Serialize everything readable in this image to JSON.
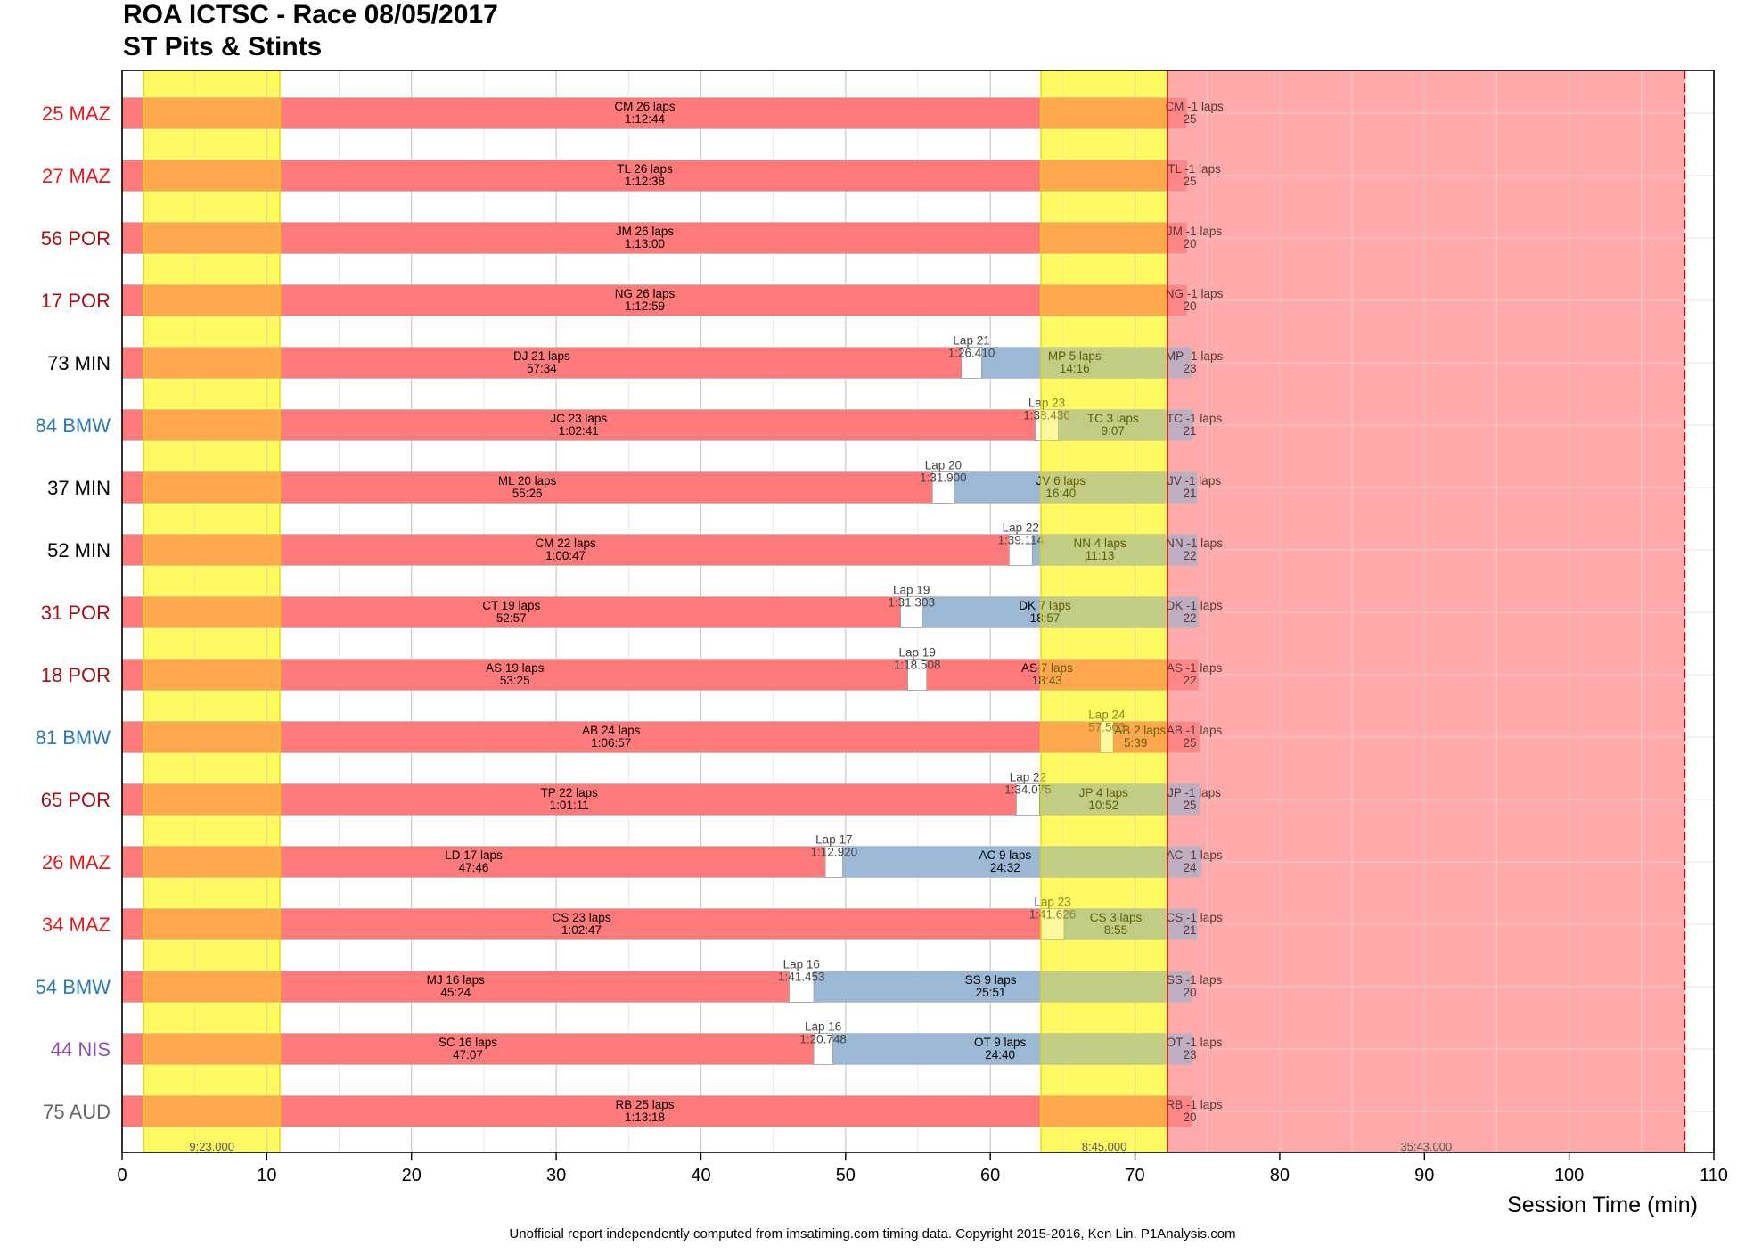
{
  "header": {
    "title": "ROA ICTSC - Race 08/05/2017",
    "subtitle": "ST Pits & Stints"
  },
  "footer": {
    "text": "Unofficial report independently computed from imsatiming.com timing data. Copyright 2015-2016, Ken Lin. P1Analysis.com"
  },
  "colors": {
    "stint_red": "#ff7b7b",
    "stint_blue": "#9bb9d6",
    "caution_yellow": "#ffff9e",
    "red_flag": "#ffb3b3",
    "pit_box": "#ffffff",
    "MAZ": "#e41a1c",
    "POR": "#a50f15",
    "MIN": "#000000",
    "BMW": "#2a7ab8",
    "NIS": "#8e4fb5",
    "AUD": "#666666"
  },
  "chart_data": {
    "type": "gantt",
    "xlabel": "Session Time (min)",
    "xlim": [
      0,
      110
    ],
    "xticks": [
      0,
      10,
      20,
      30,
      40,
      50,
      60,
      70,
      80,
      90,
      100,
      110
    ],
    "grid": true,
    "cautions": [
      {
        "start": 1.5,
        "end": 10.9,
        "label": "9:23.000",
        "kind": "yellow"
      },
      {
        "start": 63.5,
        "end": 72.25,
        "label": "8:45.000",
        "kind": "yellow"
      },
      {
        "start": 72.25,
        "end": 108.0,
        "label": "35:43.000",
        "kind": "red"
      }
    ],
    "rows": [
      {
        "label": "25 MAZ",
        "make": "MAZ",
        "stints": [
          {
            "start": 0,
            "end": 72.25,
            "color": "red",
            "line1": "CM 26 laps",
            "line2": "1:12:44"
          },
          {
            "start": 72.25,
            "end": 73.6,
            "color": "red",
            "line1": "CM -1 laps",
            "line2": "25"
          }
        ],
        "pits": []
      },
      {
        "label": "27 MAZ",
        "make": "MAZ",
        "stints": [
          {
            "start": 0,
            "end": 72.25,
            "color": "red",
            "line1": "TL 26 laps",
            "line2": "1:12:38"
          },
          {
            "start": 72.25,
            "end": 73.6,
            "color": "red",
            "line1": "TL -1 laps",
            "line2": "25"
          }
        ],
        "pits": []
      },
      {
        "label": "56 POR",
        "make": "POR",
        "stints": [
          {
            "start": 0,
            "end": 72.25,
            "color": "red",
            "line1": "JM 26 laps",
            "line2": "1:13:00"
          },
          {
            "start": 72.25,
            "end": 73.6,
            "color": "red",
            "line1": "JM -1 laps",
            "line2": "20"
          }
        ],
        "pits": []
      },
      {
        "label": "17 POR",
        "make": "POR",
        "stints": [
          {
            "start": 0,
            "end": 72.25,
            "color": "red",
            "line1": "NG 26 laps",
            "line2": "1:12:59"
          },
          {
            "start": 72.25,
            "end": 73.6,
            "color": "red",
            "line1": "NG -1 laps",
            "line2": "20"
          }
        ],
        "pits": []
      },
      {
        "label": "73 MIN",
        "make": "MIN",
        "stints": [
          {
            "start": 0,
            "end": 58.0,
            "color": "red",
            "line1": "DJ 21 laps",
            "line2": "57:34"
          },
          {
            "start": 59.4,
            "end": 72.25,
            "color": "blue",
            "line1": "MP 5 laps",
            "line2": "14:16"
          },
          {
            "start": 72.25,
            "end": 73.9,
            "color": "blue",
            "line1": "MP -1 laps",
            "line2": "23"
          }
        ],
        "pits": [
          {
            "start": 58.0,
            "end": 59.4,
            "line1": "Lap 21",
            "line2": "1:26.410"
          }
        ]
      },
      {
        "label": "84 BMW",
        "make": "BMW",
        "stints": [
          {
            "start": 0,
            "end": 63.1,
            "color": "red",
            "line1": "JC 23 laps",
            "line2": "1:02:41"
          },
          {
            "start": 64.7,
            "end": 72.25,
            "color": "blue",
            "line1": "TC 3 laps",
            "line2": "9:07"
          },
          {
            "start": 72.25,
            "end": 74.0,
            "color": "blue",
            "line1": "TC -1 laps",
            "line2": "21"
          }
        ],
        "pits": [
          {
            "start": 63.1,
            "end": 64.7,
            "line1": "Lap 23",
            "line2": "1:38.436"
          }
        ]
      },
      {
        "label": "37 MIN",
        "make": "MIN",
        "stints": [
          {
            "start": 0,
            "end": 56.0,
            "color": "red",
            "line1": "ML 20 laps",
            "line2": "55:26"
          },
          {
            "start": 57.5,
            "end": 72.25,
            "color": "blue",
            "line1": "JV 6 laps",
            "line2": "16:40"
          },
          {
            "start": 72.25,
            "end": 74.3,
            "color": "blue",
            "line1": "JV -1 laps",
            "line2": "21"
          }
        ],
        "pits": [
          {
            "start": 56.0,
            "end": 57.5,
            "line1": "Lap 20",
            "line2": "1:31.900"
          }
        ]
      },
      {
        "label": "52 MIN",
        "make": "MIN",
        "stints": [
          {
            "start": 0,
            "end": 61.3,
            "color": "red",
            "line1": "CM 22 laps",
            "line2": "1:00:47"
          },
          {
            "start": 62.9,
            "end": 72.25,
            "color": "blue",
            "line1": "NN 4 laps",
            "line2": "11:13"
          },
          {
            "start": 72.25,
            "end": 74.3,
            "color": "blue",
            "line1": "NN -1 laps",
            "line2": "22"
          }
        ],
        "pits": [
          {
            "start": 61.3,
            "end": 62.9,
            "line1": "Lap 22",
            "line2": "1:39.114"
          }
        ]
      },
      {
        "label": "31 POR",
        "make": "POR",
        "stints": [
          {
            "start": 0,
            "end": 53.8,
            "color": "red",
            "line1": "CT 19 laps",
            "line2": "52:57"
          },
          {
            "start": 55.3,
            "end": 72.25,
            "color": "blue",
            "line1": "DK 7 laps",
            "line2": "18:57"
          },
          {
            "start": 72.25,
            "end": 74.4,
            "color": "blue",
            "line1": "DK -1 laps",
            "line2": "22"
          }
        ],
        "pits": [
          {
            "start": 53.8,
            "end": 55.3,
            "line1": "Lap 19",
            "line2": "1:31.303"
          }
        ]
      },
      {
        "label": "18 POR",
        "make": "POR",
        "stints": [
          {
            "start": 0,
            "end": 54.3,
            "color": "red",
            "line1": "AS 19 laps",
            "line2": "53:25"
          },
          {
            "start": 55.6,
            "end": 72.25,
            "color": "red",
            "line1": "AS 7 laps",
            "line2": "18:43"
          },
          {
            "start": 72.25,
            "end": 74.4,
            "color": "red",
            "line1": "AS -1 laps",
            "line2": "22"
          }
        ],
        "pits": [
          {
            "start": 54.3,
            "end": 55.6,
            "line1": "Lap 19",
            "line2": "1:18.508"
          }
        ]
      },
      {
        "label": "81 BMW",
        "make": "BMW",
        "stints": [
          {
            "start": 0,
            "end": 67.6,
            "color": "red",
            "line1": "AB 24 laps",
            "line2": "1:06:57"
          },
          {
            "start": 68.5,
            "end": 72.25,
            "color": "red",
            "line1": "AB 2 laps",
            "line2": "5:39"
          },
          {
            "start": 72.25,
            "end": 74.5,
            "color": "red",
            "line1": "AB -1 laps",
            "line2": "25"
          }
        ],
        "pits": [
          {
            "start": 67.6,
            "end": 68.5,
            "line1": "Lap 24",
            "line2": "57.563"
          }
        ]
      },
      {
        "label": "65 POR",
        "make": "POR",
        "stints": [
          {
            "start": 0,
            "end": 61.8,
            "color": "red",
            "line1": "TP 22 laps",
            "line2": "1:01:11"
          },
          {
            "start": 63.4,
            "end": 72.25,
            "color": "blue",
            "line1": "JP 4 laps",
            "line2": "10:52"
          },
          {
            "start": 72.25,
            "end": 74.5,
            "color": "blue",
            "line1": "JP -1 laps",
            "line2": "25"
          }
        ],
        "pits": [
          {
            "start": 61.8,
            "end": 63.4,
            "line1": "Lap 22",
            "line2": "1:34.075"
          }
        ]
      },
      {
        "label": "26 MAZ",
        "make": "MAZ",
        "stints": [
          {
            "start": 0,
            "end": 48.6,
            "color": "red",
            "line1": "LD 17 laps",
            "line2": "47:46"
          },
          {
            "start": 49.8,
            "end": 72.25,
            "color": "blue",
            "line1": "AC 9 laps",
            "line2": "24:32"
          },
          {
            "start": 72.25,
            "end": 74.6,
            "color": "blue",
            "line1": "AC -1 laps",
            "line2": "24"
          }
        ],
        "pits": [
          {
            "start": 48.6,
            "end": 49.8,
            "line1": "Lap 17",
            "line2": "1:12.920"
          }
        ]
      },
      {
        "label": "34 MAZ",
        "make": "MAZ",
        "stints": [
          {
            "start": 0,
            "end": 63.5,
            "color": "red",
            "line1": "CS 23 laps",
            "line2": "1:02:47"
          },
          {
            "start": 65.1,
            "end": 72.25,
            "color": "blue",
            "line1": "CS 3 laps",
            "line2": "8:55"
          },
          {
            "start": 72.25,
            "end": 74.3,
            "color": "blue",
            "line1": "CS -1 laps",
            "line2": "21"
          }
        ],
        "pits": [
          {
            "start": 63.5,
            "end": 65.1,
            "line1": "Lap 23",
            "line2": "1:41.626"
          }
        ]
      },
      {
        "label": "54 BMW",
        "make": "BMW",
        "stints": [
          {
            "start": 0,
            "end": 46.1,
            "color": "red",
            "line1": "MJ 16 laps",
            "line2": "45:24"
          },
          {
            "start": 47.8,
            "end": 72.25,
            "color": "blue",
            "line1": "SS 9 laps",
            "line2": "25:51"
          },
          {
            "start": 72.25,
            "end": 73.9,
            "color": "blue",
            "line1": "SS -1 laps",
            "line2": "20"
          }
        ],
        "pits": [
          {
            "start": 46.1,
            "end": 47.8,
            "line1": "Lap 16",
            "line2": "1:41.453"
          }
        ]
      },
      {
        "label": "44 NIS",
        "make": "NIS",
        "stints": [
          {
            "start": 0,
            "end": 47.8,
            "color": "red",
            "line1": "SC 16 laps",
            "line2": "47:07"
          },
          {
            "start": 49.1,
            "end": 72.25,
            "color": "blue",
            "line1": "OT 9 laps",
            "line2": "24:40"
          },
          {
            "start": 72.25,
            "end": 74.0,
            "color": "blue",
            "line1": "OT -1 laps",
            "line2": "23"
          }
        ],
        "pits": [
          {
            "start": 47.8,
            "end": 49.1,
            "line1": "Lap 16",
            "line2": "1:20.748"
          }
        ]
      },
      {
        "label": "75 AUD",
        "make": "AUD",
        "stints": [
          {
            "start": 0,
            "end": 72.25,
            "color": "red",
            "line1": "RB 25 laps",
            "line2": "1:13:18"
          },
          {
            "start": 72.25,
            "end": 74.0,
            "color": "red",
            "line1": "RB -1 laps",
            "line2": "20"
          }
        ],
        "pits": []
      }
    ]
  }
}
